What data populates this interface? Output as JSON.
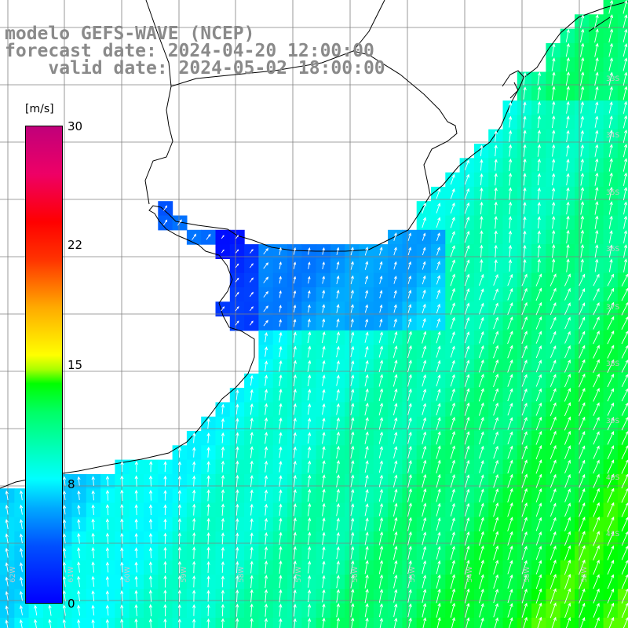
{
  "title": {
    "line1": "modelo GEFS-WAVE (NCEP)",
    "line2": "forecast date: 2024-04-20 12:00:00",
    "line3": "    valid date: 2024-05-02 18:00:00"
  },
  "colorbar": {
    "units": "[m/s]",
    "min": 0,
    "max": 30,
    "ticks": [
      "30",
      "22",
      "15",
      "8",
      "0"
    ]
  },
  "lat_labels": [
    "33S",
    "34S",
    "35S",
    "36S",
    "37S",
    "38S",
    "39S",
    "40S",
    "41S"
  ],
  "lon_labels": [
    "62W",
    "61W",
    "60W",
    "59W",
    "58W",
    "57W",
    "56W",
    "55W",
    "54W",
    "53W",
    "52W"
  ],
  "colors": {
    "land": "#ffffff",
    "grid": "#808080",
    "coast": "#000000",
    "arrows": "#ffffff",
    "title": "#8a8a8a"
  }
}
